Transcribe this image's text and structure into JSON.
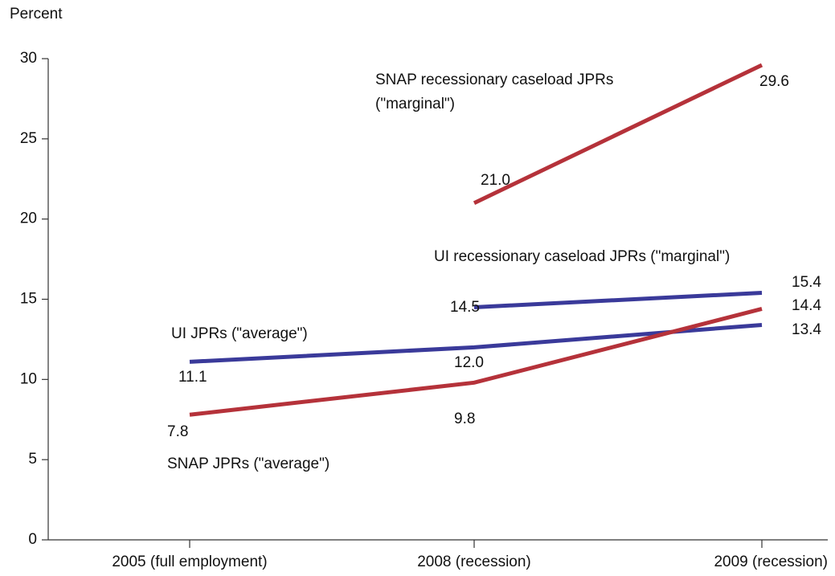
{
  "chart_data": {
    "type": "line",
    "ylabel": "Percent",
    "categories": [
      "2005 (full employment)",
      "2008 (recession)",
      "2009 (recession)"
    ],
    "ylim": [
      0,
      30
    ],
    "yticks": [
      0,
      5,
      10,
      15,
      20,
      25,
      30
    ],
    "series": [
      {
        "name": "SNAP recessionary caseload JPRs (\"marginal\")",
        "color": "#b5323a",
        "values": [
          null,
          21.0,
          29.6
        ],
        "value_labels": [
          null,
          "21.0",
          "29.6"
        ]
      },
      {
        "name": "UI recessionary caseload JPRs (\"marginal\")",
        "color": "#3a3a9a",
        "values": [
          null,
          14.5,
          15.4
        ],
        "value_labels": [
          null,
          "14.5",
          "15.4"
        ]
      },
      {
        "name": "UI JPRs (\"average\")",
        "color": "#3a3a9a",
        "values": [
          11.1,
          12.0,
          13.4
        ],
        "value_labels": [
          "11.1",
          "12.0",
          "13.4"
        ]
      },
      {
        "name": "SNAP JPRs (\"average\")",
        "color": "#b5323a",
        "values": [
          7.8,
          9.8,
          14.4
        ],
        "value_labels": [
          "7.8",
          "9.8",
          "14.4"
        ]
      }
    ]
  }
}
